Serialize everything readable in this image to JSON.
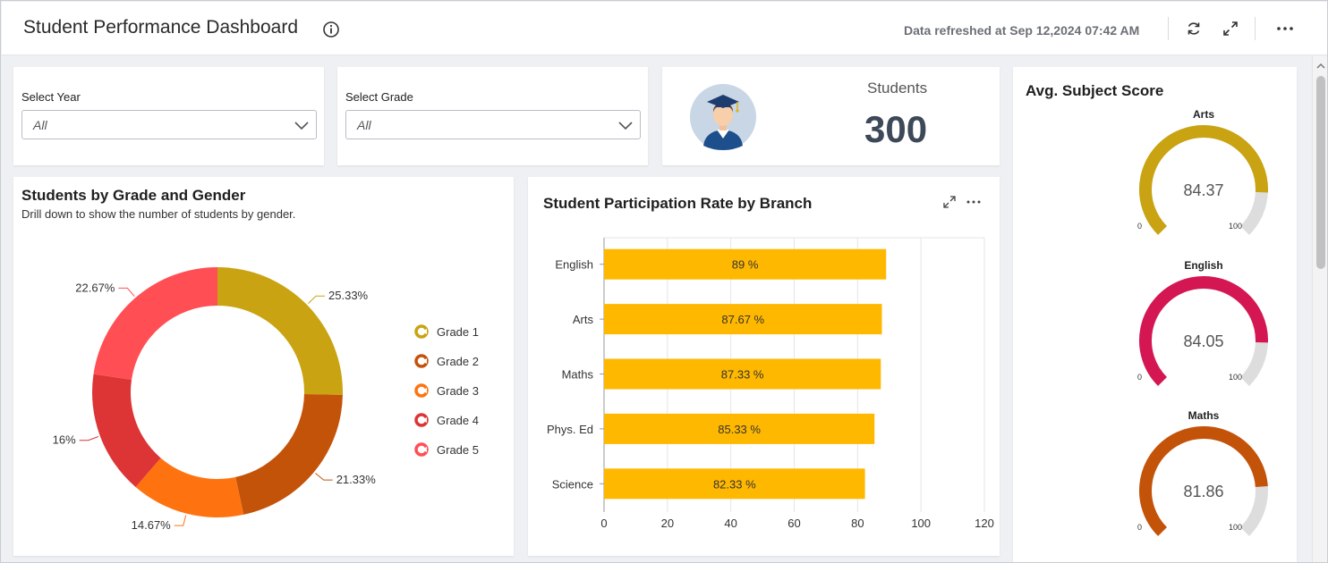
{
  "header": {
    "title": "Student Performance Dashboard",
    "refresh_text": "Data refreshed at Sep 12,2024 07:42 AM"
  },
  "filters": {
    "year": {
      "label": "Select Year",
      "value": "All"
    },
    "grade": {
      "label": "Select Grade",
      "value": "All"
    }
  },
  "kpi": {
    "label": "Students",
    "value": "300"
  },
  "donut": {
    "title": "Students by Grade and Gender",
    "subtitle": "Drill down to show the number of students by gender."
  },
  "bar": {
    "title": "Student Participation Rate by Branch"
  },
  "gauges": {
    "title": "Avg. Subject Score"
  },
  "colors": {
    "grade1": "#c9a312",
    "grade2": "#c4530a",
    "grade3": "#ff7210",
    "grade4": "#dd3436",
    "grade5": "#ff4f54",
    "bar": "#ffb800",
    "gauge_arts": "#c9a312",
    "gauge_english": "#d41753",
    "gauge_maths": "#c4530a",
    "gauge_track": "#dddddd"
  },
  "chart_data": [
    {
      "type": "pie",
      "title": "Students by Grade and Gender",
      "categories": [
        "Grade 1",
        "Grade 2",
        "Grade 3",
        "Grade 4",
        "Grade 5"
      ],
      "values": [
        25.33,
        21.33,
        14.67,
        16,
        22.67
      ],
      "labels": [
        "25.33%",
        "21.33%",
        "14.67%",
        "16%",
        "22.67%"
      ],
      "legend": "right"
    },
    {
      "type": "bar",
      "orientation": "horizontal",
      "title": "Student Participation Rate by Branch",
      "categories": [
        "English",
        "Arts",
        "Maths",
        "Phys. Ed",
        "Science"
      ],
      "values": [
        89,
        87.67,
        87.33,
        85.33,
        82.33
      ],
      "labels": [
        "89 %",
        "87.67 %",
        "87.33 %",
        "85.33 %",
        "82.33 %"
      ],
      "xlim": [
        0,
        120
      ],
      "xticks": [
        "0",
        "20",
        "40",
        "60",
        "80",
        "100",
        "120"
      ],
      "grid": true
    },
    {
      "type": "gauge",
      "title": "Avg. Subject Score",
      "items": [
        {
          "name": "Arts",
          "value": 84.37,
          "min": "0",
          "max": "100"
        },
        {
          "name": "English",
          "value": 84.05,
          "min": "0",
          "max": "100"
        },
        {
          "name": "Maths",
          "value": 81.86,
          "min": "0",
          "max": "100"
        }
      ]
    }
  ]
}
